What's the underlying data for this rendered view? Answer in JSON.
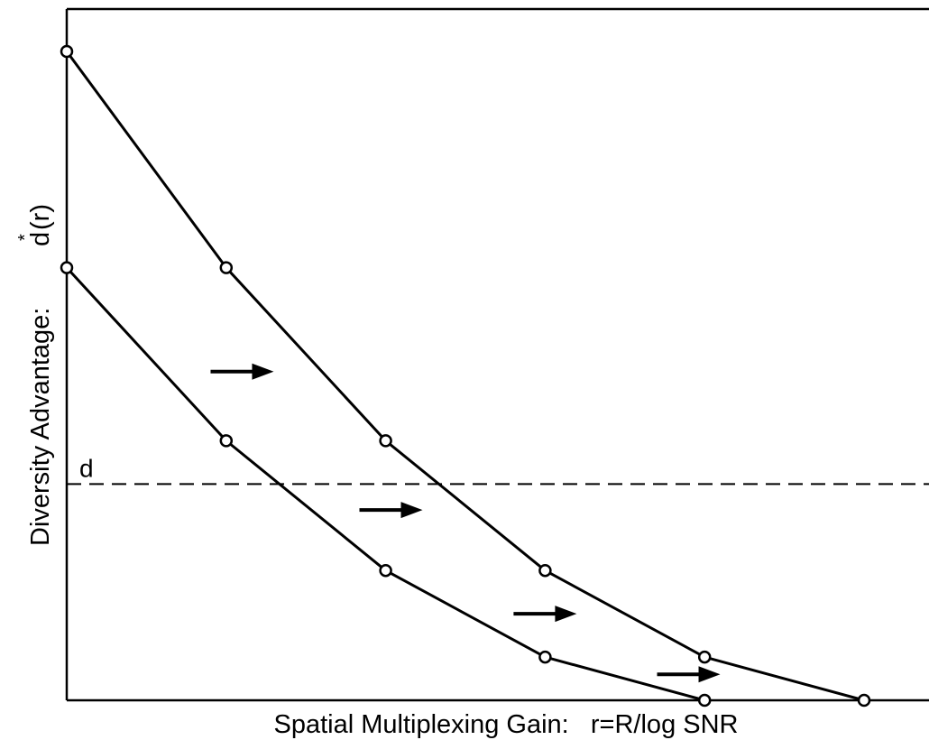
{
  "chart_data": {
    "type": "line",
    "title": "",
    "xlabel": "Spatial Multiplexing Gain:   r=R/log SNR",
    "ylabel": "Diversity Advantage:",
    "ylabel_symbol": "d",
    "ylabel_superscript": "*",
    "ylabel_arg": "(r)",
    "xlim": [
      0,
      5
    ],
    "ylim": [
      0,
      16
    ],
    "grid": false,
    "legend": "none",
    "series": [
      {
        "x": [
          0,
          1,
          2,
          3,
          4,
          5
        ],
        "y": [
          15,
          10,
          6,
          3,
          1,
          0
        ]
      },
      {
        "x": [
          0,
          1,
          2,
          3,
          4
        ],
        "y": [
          10,
          6,
          3,
          1,
          0
        ]
      }
    ],
    "reference_line": {
      "label": "d",
      "y": 5
    },
    "arrows": [
      {
        "y": 7.6
      },
      {
        "y": 4.4
      },
      {
        "y": 2.0
      },
      {
        "y": 0.6
      }
    ]
  }
}
